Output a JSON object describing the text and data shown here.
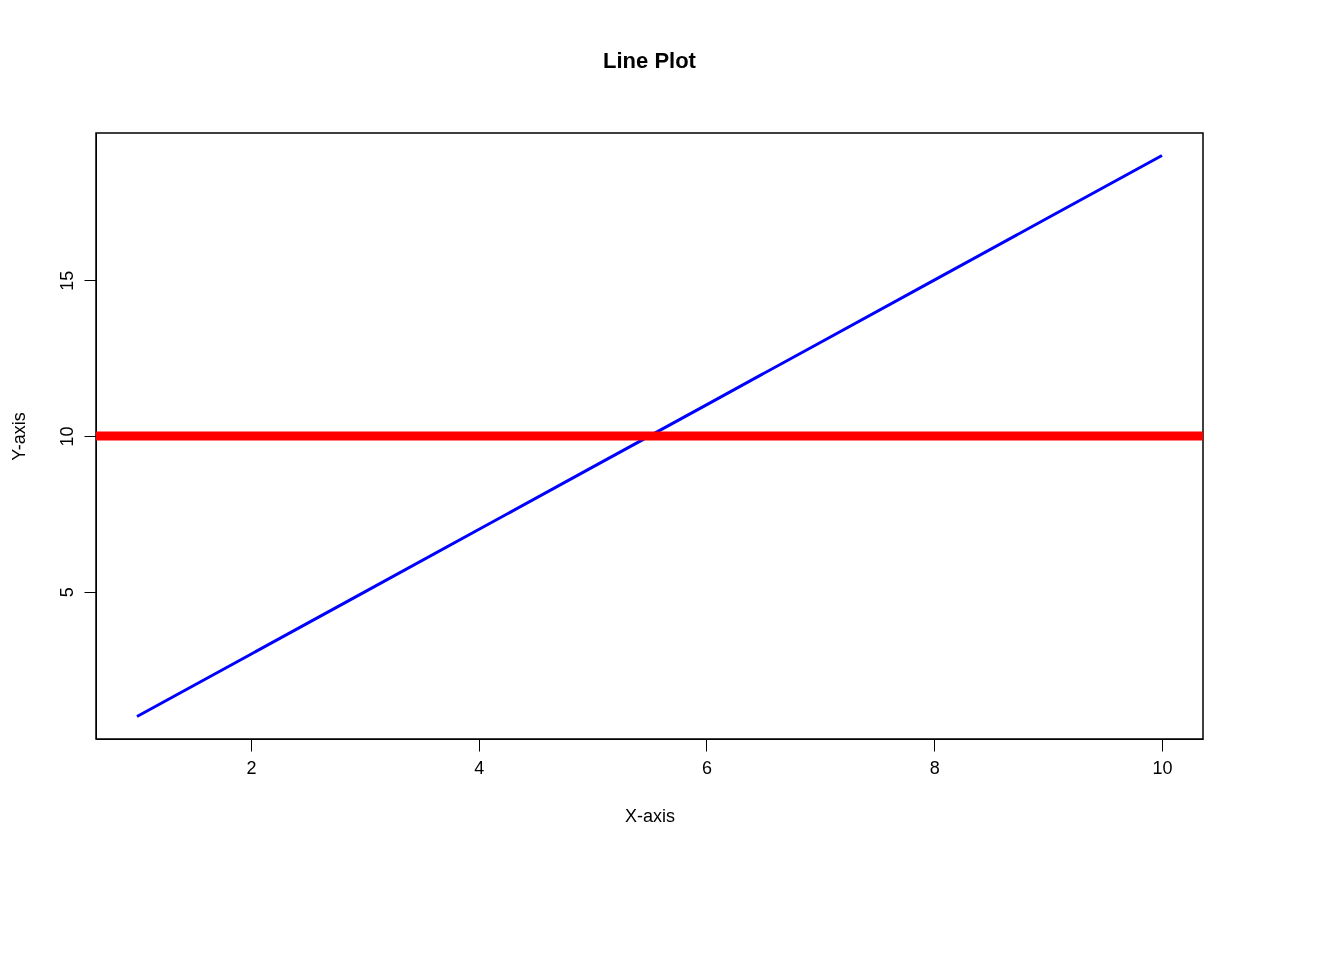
{
  "chart_data": {
    "type": "line",
    "title": "Line Plot",
    "xlabel": "X-axis",
    "ylabel": "Y-axis",
    "x": [
      1,
      2,
      3,
      4,
      5,
      6,
      7,
      8,
      9,
      10
    ],
    "series": [
      {
        "color": "#0000ff",
        "values": [
          1,
          3,
          5,
          7,
          9,
          11,
          13,
          15,
          17,
          19
        ]
      }
    ],
    "xlim": [
      0.64,
      10.36
    ],
    "ylim": [
      0.28,
      19.72
    ],
    "xticks": [
      2,
      4,
      6,
      8,
      10
    ],
    "yticks": [
      5,
      10,
      15
    ],
    "ref_lines": [
      {
        "axis": "y",
        "value": 10,
        "color": "#ff0000"
      }
    ],
    "grid": false,
    "marker": "none",
    "line_style": "solid"
  }
}
